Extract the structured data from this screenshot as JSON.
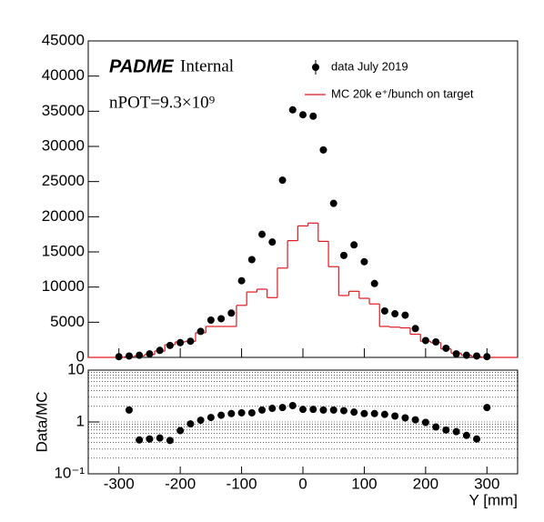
{
  "chart_data": [
    {
      "type": "histogram",
      "xlim": [
        -350,
        350
      ],
      "ylim": [
        0,
        45000
      ],
      "yticks": [
        0,
        5000,
        10000,
        15000,
        20000,
        25000,
        30000,
        35000,
        40000,
        45000
      ],
      "brand": "PADME",
      "brand_suffix": "Internal",
      "annotation": "nPOT=9.3×10⁹",
      "x": [
        -300,
        -283.3,
        -266.7,
        -250,
        -233.3,
        -216.7,
        -200,
        -183.3,
        -166.7,
        -150,
        -133.3,
        -116.7,
        -100,
        -83.3,
        -66.7,
        -50,
        -33.3,
        -16.7,
        0,
        16.7,
        33.3,
        50,
        66.7,
        83.3,
        100,
        116.7,
        133.3,
        150,
        166.7,
        183.3,
        200,
        216.7,
        233.3,
        250,
        266.7,
        283.3,
        300
      ],
      "series": [
        {
          "name": "data July 2019",
          "style": "points",
          "color": "#000000",
          "values": [
            100,
            200,
            300,
            500,
            1000,
            1700,
            2100,
            2300,
            3700,
            5300,
            5500,
            6300,
            10900,
            13900,
            17500,
            16400,
            25200,
            35200,
            34500,
            34300,
            29500,
            21900,
            14500,
            16000,
            13600,
            10500,
            6600,
            6200,
            6000,
            4100,
            2400,
            2200,
            1300,
            500,
            300,
            200,
            100
          ]
        },
        {
          "name": "MC 20k e⁺/bunch on target",
          "style": "step",
          "color": "#e0191f",
          "values": [
            0,
            100,
            200,
            400,
            900,
            1800,
            2200,
            2300,
            3500,
            4400,
            4400,
            4400,
            7400,
            9300,
            9700,
            8500,
            12700,
            16600,
            18700,
            19100,
            16500,
            12900,
            8800,
            9400,
            8400,
            7600,
            4400,
            4300,
            4200,
            3300,
            2300,
            2100,
            1200,
            600,
            300,
            100,
            0
          ]
        }
      ]
    },
    {
      "type": "scatter",
      "xlabel": "Y [mm]",
      "ylabel": "Data/MC",
      "xlim": [
        -350,
        350
      ],
      "xticks": [
        -300,
        -200,
        -100,
        0,
        100,
        200,
        300
      ],
      "ylog": true,
      "grid": true,
      "ylim": [
        0.1,
        10
      ],
      "yticks": [
        {
          "value": 0.1,
          "label": "10⁻¹"
        },
        1,
        10
      ],
      "color": "#000000",
      "x": [
        -300,
        -283.3,
        -266.7,
        -250,
        -233.3,
        -216.7,
        -200,
        -183.3,
        -166.7,
        -150,
        -133.3,
        -116.7,
        -100,
        -83.3,
        -66.7,
        -50,
        -33.3,
        -16.7,
        0,
        16.7,
        33.3,
        50,
        66.7,
        83.3,
        100,
        116.7,
        133.3,
        150,
        166.7,
        183.3,
        200,
        216.7,
        233.3,
        250,
        266.7,
        283.3,
        300
      ],
      "values": [
        null,
        1.7,
        0.45,
        0.47,
        0.49,
        0.44,
        0.68,
        0.92,
        1.08,
        1.22,
        1.35,
        1.45,
        1.5,
        1.5,
        1.7,
        1.83,
        1.9,
        2.07,
        1.75,
        1.75,
        1.7,
        1.7,
        1.65,
        1.55,
        1.45,
        1.45,
        1.4,
        1.3,
        1.2,
        1.1,
        0.98,
        0.8,
        0.7,
        0.65,
        0.55,
        0.47,
        1.9
      ]
    }
  ]
}
